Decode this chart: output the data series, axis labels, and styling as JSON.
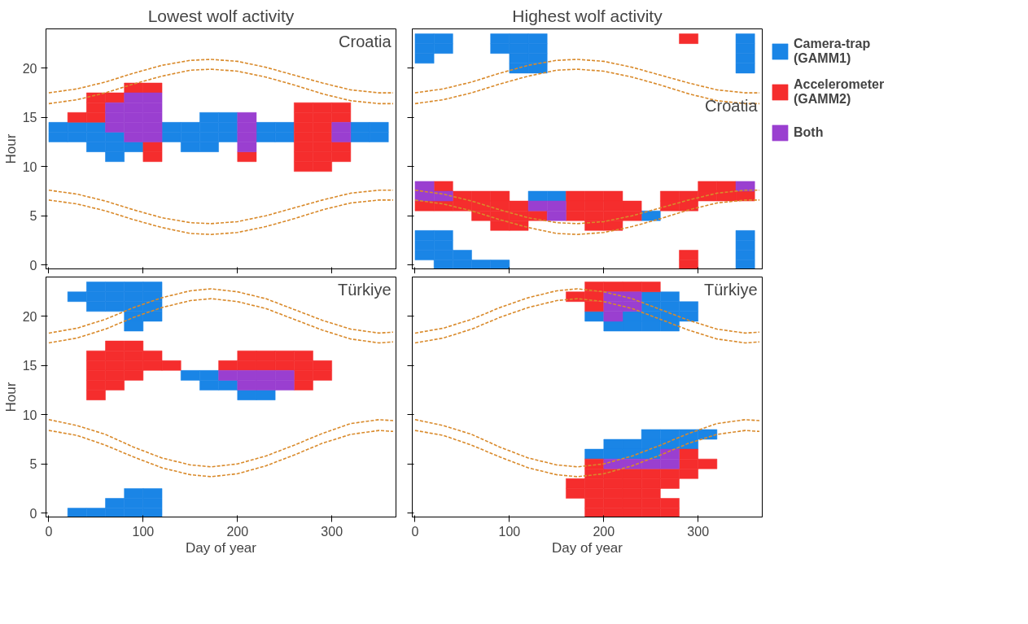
{
  "chart_data": [
    {
      "type": "scatter",
      "title": "Lowest wolf activity",
      "ylabel": "Hour",
      "annotations": [
        "Croatia"
      ],
      "xlim": [
        -3,
        368
      ],
      "ylim": [
        -0.4,
        24
      ],
      "xticks": [
        0,
        100,
        200,
        300
      ],
      "yticks": [
        0,
        5,
        10,
        15,
        20
      ],
      "tick_labels": "y",
      "series": [
        {
          "color": "#1a85e6",
          "x": [
            170,
            190,
            10,
            30,
            50,
            130,
            150,
            170,
            190,
            230,
            250,
            330,
            350,
            10,
            30,
            50,
            70,
            130,
            150,
            170,
            190,
            230,
            250,
            330,
            350,
            50,
            70,
            90,
            150,
            170,
            70
          ],
          "values": [
            15,
            15,
            14,
            14,
            14,
            14,
            14,
            14,
            14,
            14,
            14,
            14,
            14,
            13,
            13,
            13,
            13,
            13,
            13,
            13,
            13,
            13,
            13,
            13,
            13,
            12,
            12,
            12,
            12,
            12,
            11
          ]
        },
        {
          "color": "#f52d2d",
          "x": [
            90,
            110,
            50,
            70,
            50,
            270,
            290,
            310,
            30,
            50,
            270,
            290,
            310,
            270,
            290,
            270,
            290,
            110,
            270,
            290,
            310,
            110,
            210,
            270,
            290,
            310,
            270,
            290
          ],
          "values": [
            18,
            18,
            17,
            17,
            16,
            16,
            16,
            16,
            15,
            15,
            15,
            15,
            15,
            14,
            14,
            13,
            13,
            12,
            12,
            12,
            12,
            11,
            11,
            11,
            11,
            11,
            10,
            10
          ]
        },
        {
          "color": "#9a3fd0",
          "x": [
            90,
            110,
            70,
            90,
            110,
            70,
            90,
            110,
            210,
            70,
            90,
            110,
            210,
            310,
            90,
            110,
            210,
            310,
            210
          ],
          "values": [
            17,
            17,
            16,
            16,
            16,
            15,
            15,
            15,
            15,
            14,
            14,
            14,
            14,
            14,
            13,
            13,
            13,
            13,
            12
          ]
        },
        {
          "type": "line",
          "color": "#d98a2b",
          "line_style": "dashed",
          "x": [
            0,
            30,
            60,
            90,
            120,
            150,
            172,
            200,
            230,
            260,
            290,
            320,
            350,
            365
          ],
          "values": [
            17.5,
            17.9,
            18.6,
            19.5,
            20.3,
            20.8,
            20.9,
            20.7,
            20.1,
            19.3,
            18.5,
            17.8,
            17.5,
            17.5
          ]
        },
        {
          "type": "line",
          "color": "#d98a2b",
          "line_style": "dashed",
          "x": [
            0,
            30,
            60,
            90,
            120,
            150,
            172,
            200,
            230,
            260,
            290,
            320,
            350,
            365
          ],
          "values": [
            16.4,
            16.8,
            17.5,
            18.4,
            19.2,
            19.8,
            19.9,
            19.7,
            19.1,
            18.3,
            17.4,
            16.7,
            16.4,
            16.4
          ]
        },
        {
          "type": "line",
          "color": "#d98a2b",
          "line_style": "dashed",
          "x": [
            0,
            30,
            60,
            90,
            120,
            150,
            172,
            200,
            230,
            260,
            290,
            320,
            350,
            365
          ],
          "values": [
            7.6,
            7.2,
            6.5,
            5.6,
            4.8,
            4.3,
            4.2,
            4.4,
            5.0,
            5.8,
            6.6,
            7.3,
            7.6,
            7.6
          ]
        },
        {
          "type": "line",
          "color": "#d98a2b",
          "line_style": "dashed",
          "x": [
            0,
            30,
            60,
            90,
            120,
            150,
            172,
            200,
            230,
            260,
            290,
            320,
            350,
            365
          ],
          "values": [
            6.6,
            6.2,
            5.5,
            4.6,
            3.8,
            3.2,
            3.1,
            3.3,
            3.9,
            4.7,
            5.6,
            6.3,
            6.6,
            6.6
          ]
        }
      ]
    },
    {
      "type": "scatter",
      "title": "Highest wolf activity",
      "annotations": [
        "Croatia"
      ],
      "xlim": [
        -3,
        368
      ],
      "ylim": [
        -0.4,
        24
      ],
      "xticks": [
        0,
        100,
        200,
        300
      ],
      "yticks": [
        0,
        5,
        10,
        15,
        20
      ],
      "tick_labels": false,
      "legend": "right",
      "series": [
        {
          "name": "Camera-trap (GAMM1)",
          "color": "#1a85e6",
          "x": [
            10,
            30,
            90,
            110,
            130,
            350,
            10,
            30,
            90,
            110,
            130,
            350,
            10,
            110,
            130,
            350,
            110,
            130,
            350,
            130,
            150,
            250,
            10,
            30,
            350,
            10,
            30,
            350,
            10,
            30,
            50,
            350,
            30,
            50,
            70,
            90,
            350
          ],
          "values": [
            23,
            23,
            23,
            23,
            23,
            23,
            22,
            22,
            22,
            22,
            22,
            22,
            21,
            21,
            21,
            21,
            20,
            20,
            20,
            7,
            7,
            5,
            3,
            3,
            3,
            2,
            2,
            2,
            1,
            1,
            1,
            1,
            0,
            0,
            0,
            0,
            0
          ]
        },
        {
          "name": "Accelerometer (GAMM2)",
          "color": "#f52d2d",
          "x": [
            290,
            30,
            310,
            330,
            50,
            70,
            90,
            170,
            190,
            210,
            270,
            290,
            310,
            330,
            350,
            10,
            30,
            50,
            70,
            90,
            110,
            170,
            190,
            210,
            230,
            270,
            290,
            70,
            90,
            110,
            130,
            170,
            190,
            210,
            230,
            90,
            110,
            190,
            210,
            290,
            290
          ],
          "values": [
            23,
            8,
            8,
            8,
            7,
            7,
            7,
            7,
            7,
            7,
            7,
            7,
            7,
            7,
            7,
            6,
            6,
            6,
            6,
            6,
            6,
            6,
            6,
            6,
            6,
            6,
            6,
            5,
            5,
            5,
            5,
            5,
            5,
            5,
            5,
            4,
            4,
            4,
            4,
            1,
            0
          ]
        },
        {
          "name": "Both",
          "color": "#9a3fd0",
          "x": [
            10,
            350,
            10,
            30,
            130,
            150,
            150
          ],
          "values": [
            8,
            8,
            7,
            7,
            6,
            6,
            5
          ]
        },
        {
          "type": "line",
          "color": "#d98a2b",
          "line_style": "dashed",
          "x": [
            0,
            30,
            60,
            90,
            120,
            150,
            172,
            200,
            230,
            260,
            290,
            320,
            350,
            365
          ],
          "values": [
            17.5,
            17.9,
            18.6,
            19.5,
            20.3,
            20.8,
            20.9,
            20.7,
            20.1,
            19.3,
            18.5,
            17.8,
            17.5,
            17.5
          ]
        },
        {
          "type": "line",
          "color": "#d98a2b",
          "line_style": "dashed",
          "x": [
            0,
            30,
            60,
            90,
            120,
            150,
            172,
            200,
            230,
            260,
            290,
            320,
            350,
            365
          ],
          "values": [
            16.4,
            16.8,
            17.5,
            18.4,
            19.2,
            19.8,
            19.9,
            19.7,
            19.1,
            18.3,
            17.4,
            16.7,
            16.4,
            16.4
          ]
        },
        {
          "type": "line",
          "color": "#d98a2b",
          "line_style": "dashed",
          "x": [
            0,
            30,
            60,
            90,
            120,
            150,
            172,
            200,
            230,
            260,
            290,
            320,
            350,
            365
          ],
          "values": [
            7.6,
            7.2,
            6.5,
            5.6,
            4.8,
            4.3,
            4.2,
            4.4,
            5.0,
            5.8,
            6.6,
            7.3,
            7.6,
            7.6
          ]
        },
        {
          "type": "line",
          "color": "#d98a2b",
          "line_style": "dashed",
          "x": [
            0,
            30,
            60,
            90,
            120,
            150,
            172,
            200,
            230,
            260,
            290,
            320,
            350,
            365
          ],
          "values": [
            6.6,
            6.2,
            5.5,
            4.6,
            3.8,
            3.2,
            3.1,
            3.3,
            3.9,
            4.7,
            5.6,
            6.3,
            6.6,
            6.6
          ]
        }
      ]
    },
    {
      "type": "scatter",
      "xlabel": "Day of year",
      "ylabel": "Hour",
      "annotations": [
        "Türkiye"
      ],
      "xlim": [
        -3,
        368
      ],
      "ylim": [
        -0.4,
        24
      ],
      "xticks": [
        0,
        100,
        200,
        300
      ],
      "yticks": [
        0,
        5,
        10,
        15,
        20
      ],
      "series": [
        {
          "color": "#1a85e6",
          "x": [
            50,
            70,
            90,
            110,
            30,
            50,
            70,
            90,
            110,
            50,
            70,
            90,
            110,
            90,
            110,
            90,
            150,
            170,
            170,
            190,
            210,
            230,
            90,
            110,
            70,
            90,
            110,
            30,
            50,
            70,
            90,
            110
          ],
          "values": [
            23,
            23,
            23,
            23,
            22,
            22,
            22,
            22,
            22,
            21,
            21,
            21,
            21,
            20,
            20,
            19,
            14,
            14,
            13,
            13,
            12,
            12,
            2,
            2,
            1,
            1,
            1,
            0,
            0,
            0,
            0,
            0
          ]
        },
        {
          "color": "#f52d2d",
          "x": [
            70,
            90,
            50,
            70,
            90,
            110,
            210,
            230,
            250,
            270,
            50,
            70,
            90,
            110,
            130,
            190,
            210,
            230,
            250,
            270,
            290,
            50,
            70,
            90,
            270,
            290,
            50,
            70,
            270,
            50
          ],
          "values": [
            17,
            17,
            16,
            16,
            16,
            16,
            16,
            16,
            16,
            16,
            15,
            15,
            15,
            15,
            15,
            15,
            15,
            15,
            15,
            15,
            15,
            14,
            14,
            14,
            14,
            14,
            13,
            13,
            13,
            12
          ]
        },
        {
          "color": "#9a3fd0",
          "x": [
            190,
            210,
            230,
            250,
            210,
            230,
            250
          ],
          "values": [
            14,
            14,
            14,
            14,
            13,
            13,
            13
          ]
        },
        {
          "type": "line",
          "color": "#d98a2b",
          "line_style": "dashed",
          "x": [
            0,
            30,
            60,
            90,
            120,
            150,
            172,
            200,
            230,
            260,
            290,
            320,
            350,
            365
          ],
          "values": [
            18.3,
            18.8,
            19.7,
            20.9,
            21.9,
            22.6,
            22.8,
            22.5,
            21.8,
            20.7,
            19.6,
            18.7,
            18.3,
            18.4
          ]
        },
        {
          "type": "line",
          "color": "#d98a2b",
          "line_style": "dashed",
          "x": [
            0,
            30,
            60,
            90,
            120,
            150,
            172,
            200,
            230,
            260,
            290,
            320,
            350,
            365
          ],
          "values": [
            17.3,
            17.8,
            18.7,
            19.9,
            20.9,
            21.6,
            21.8,
            21.5,
            20.8,
            19.7,
            18.6,
            17.7,
            17.3,
            17.4
          ]
        },
        {
          "type": "line",
          "color": "#d98a2b",
          "line_style": "dashed",
          "x": [
            0,
            30,
            60,
            90,
            120,
            150,
            172,
            200,
            230,
            260,
            290,
            320,
            350,
            365
          ],
          "values": [
            9.5,
            8.9,
            8.0,
            6.7,
            5.6,
            4.9,
            4.7,
            5.0,
            5.8,
            6.9,
            8.1,
            9.1,
            9.5,
            9.4
          ]
        },
        {
          "type": "line",
          "color": "#d98a2b",
          "line_style": "dashed",
          "x": [
            0,
            30,
            60,
            90,
            120,
            150,
            172,
            200,
            230,
            260,
            290,
            320,
            350,
            365
          ],
          "values": [
            8.4,
            7.9,
            6.9,
            5.7,
            4.6,
            3.9,
            3.7,
            4.0,
            4.8,
            5.9,
            7.1,
            8.0,
            8.4,
            8.3
          ]
        }
      ]
    },
    {
      "type": "scatter",
      "xlabel": "Day of year",
      "annotations": [
        "Türkiye"
      ],
      "xlim": [
        -3,
        368
      ],
      "ylim": [
        -0.4,
        24
      ],
      "xticks": [
        0,
        100,
        200,
        300
      ],
      "yticks": [
        0,
        5,
        10,
        15,
        20
      ],
      "tick_labels": "x",
      "series": [
        {
          "color": "#1a85e6",
          "x": [
            250,
            270,
            250,
            270,
            290,
            190,
            230,
            250,
            270,
            290,
            210,
            230,
            250,
            270,
            250,
            270,
            290,
            310,
            210,
            230,
            250,
            270,
            290,
            190,
            210,
            230,
            250
          ],
          "values": [
            22,
            22,
            21,
            21,
            21,
            20,
            20,
            20,
            20,
            20,
            19,
            19,
            19,
            19,
            8,
            8,
            8,
            8,
            7,
            7,
            7,
            7,
            7,
            6,
            6,
            6,
            6
          ]
        },
        {
          "color": "#f52d2d",
          "x": [
            190,
            210,
            230,
            250,
            170,
            190,
            190,
            290,
            190,
            290,
            310,
            190,
            210,
            230,
            250,
            270,
            290,
            170,
            190,
            210,
            230,
            250,
            270,
            170,
            190,
            210,
            230,
            250,
            190,
            210,
            230,
            250,
            270,
            190,
            210,
            230,
            250,
            270
          ],
          "values": [
            23,
            23,
            23,
            23,
            22,
            22,
            21,
            6,
            5,
            5,
            5,
            4,
            4,
            4,
            4,
            4,
            4,
            3,
            3,
            3,
            3,
            3,
            3,
            2,
            2,
            2,
            2,
            2,
            1,
            1,
            1,
            1,
            1,
            0,
            0,
            0,
            0,
            0
          ]
        },
        {
          "color": "#9a3fd0",
          "x": [
            210,
            230,
            210,
            230,
            210,
            270,
            210,
            230,
            250,
            270
          ],
          "values": [
            22,
            22,
            21,
            21,
            20,
            6,
            5,
            5,
            5,
            5
          ]
        },
        {
          "type": "line",
          "color": "#d98a2b",
          "line_style": "dashed",
          "x": [
            0,
            30,
            60,
            90,
            120,
            150,
            172,
            200,
            230,
            260,
            290,
            320,
            350,
            365
          ],
          "values": [
            18.3,
            18.8,
            19.7,
            20.9,
            21.9,
            22.6,
            22.8,
            22.5,
            21.8,
            20.7,
            19.6,
            18.7,
            18.3,
            18.4
          ]
        },
        {
          "type": "line",
          "color": "#d98a2b",
          "line_style": "dashed",
          "x": [
            0,
            30,
            60,
            90,
            120,
            150,
            172,
            200,
            230,
            260,
            290,
            320,
            350,
            365
          ],
          "values": [
            17.3,
            17.8,
            18.7,
            19.9,
            20.9,
            21.6,
            21.8,
            21.5,
            20.8,
            19.7,
            18.6,
            17.7,
            17.3,
            17.4
          ]
        },
        {
          "type": "line",
          "color": "#d98a2b",
          "line_style": "dashed",
          "x": [
            0,
            30,
            60,
            90,
            120,
            150,
            172,
            200,
            230,
            260,
            290,
            320,
            350,
            365
          ],
          "values": [
            9.5,
            8.9,
            8.0,
            6.7,
            5.6,
            4.9,
            4.7,
            5.0,
            5.8,
            6.9,
            8.1,
            9.1,
            9.5,
            9.4
          ]
        },
        {
          "type": "line",
          "color": "#d98a2b",
          "line_style": "dashed",
          "x": [
            0,
            30,
            60,
            90,
            120,
            150,
            172,
            200,
            230,
            260,
            290,
            320,
            350,
            365
          ],
          "values": [
            8.4,
            7.9,
            6.9,
            5.7,
            4.6,
            3.9,
            3.7,
            4.0,
            4.8,
            5.9,
            7.1,
            8.0,
            8.4,
            8.3
          ]
        }
      ]
    }
  ]
}
